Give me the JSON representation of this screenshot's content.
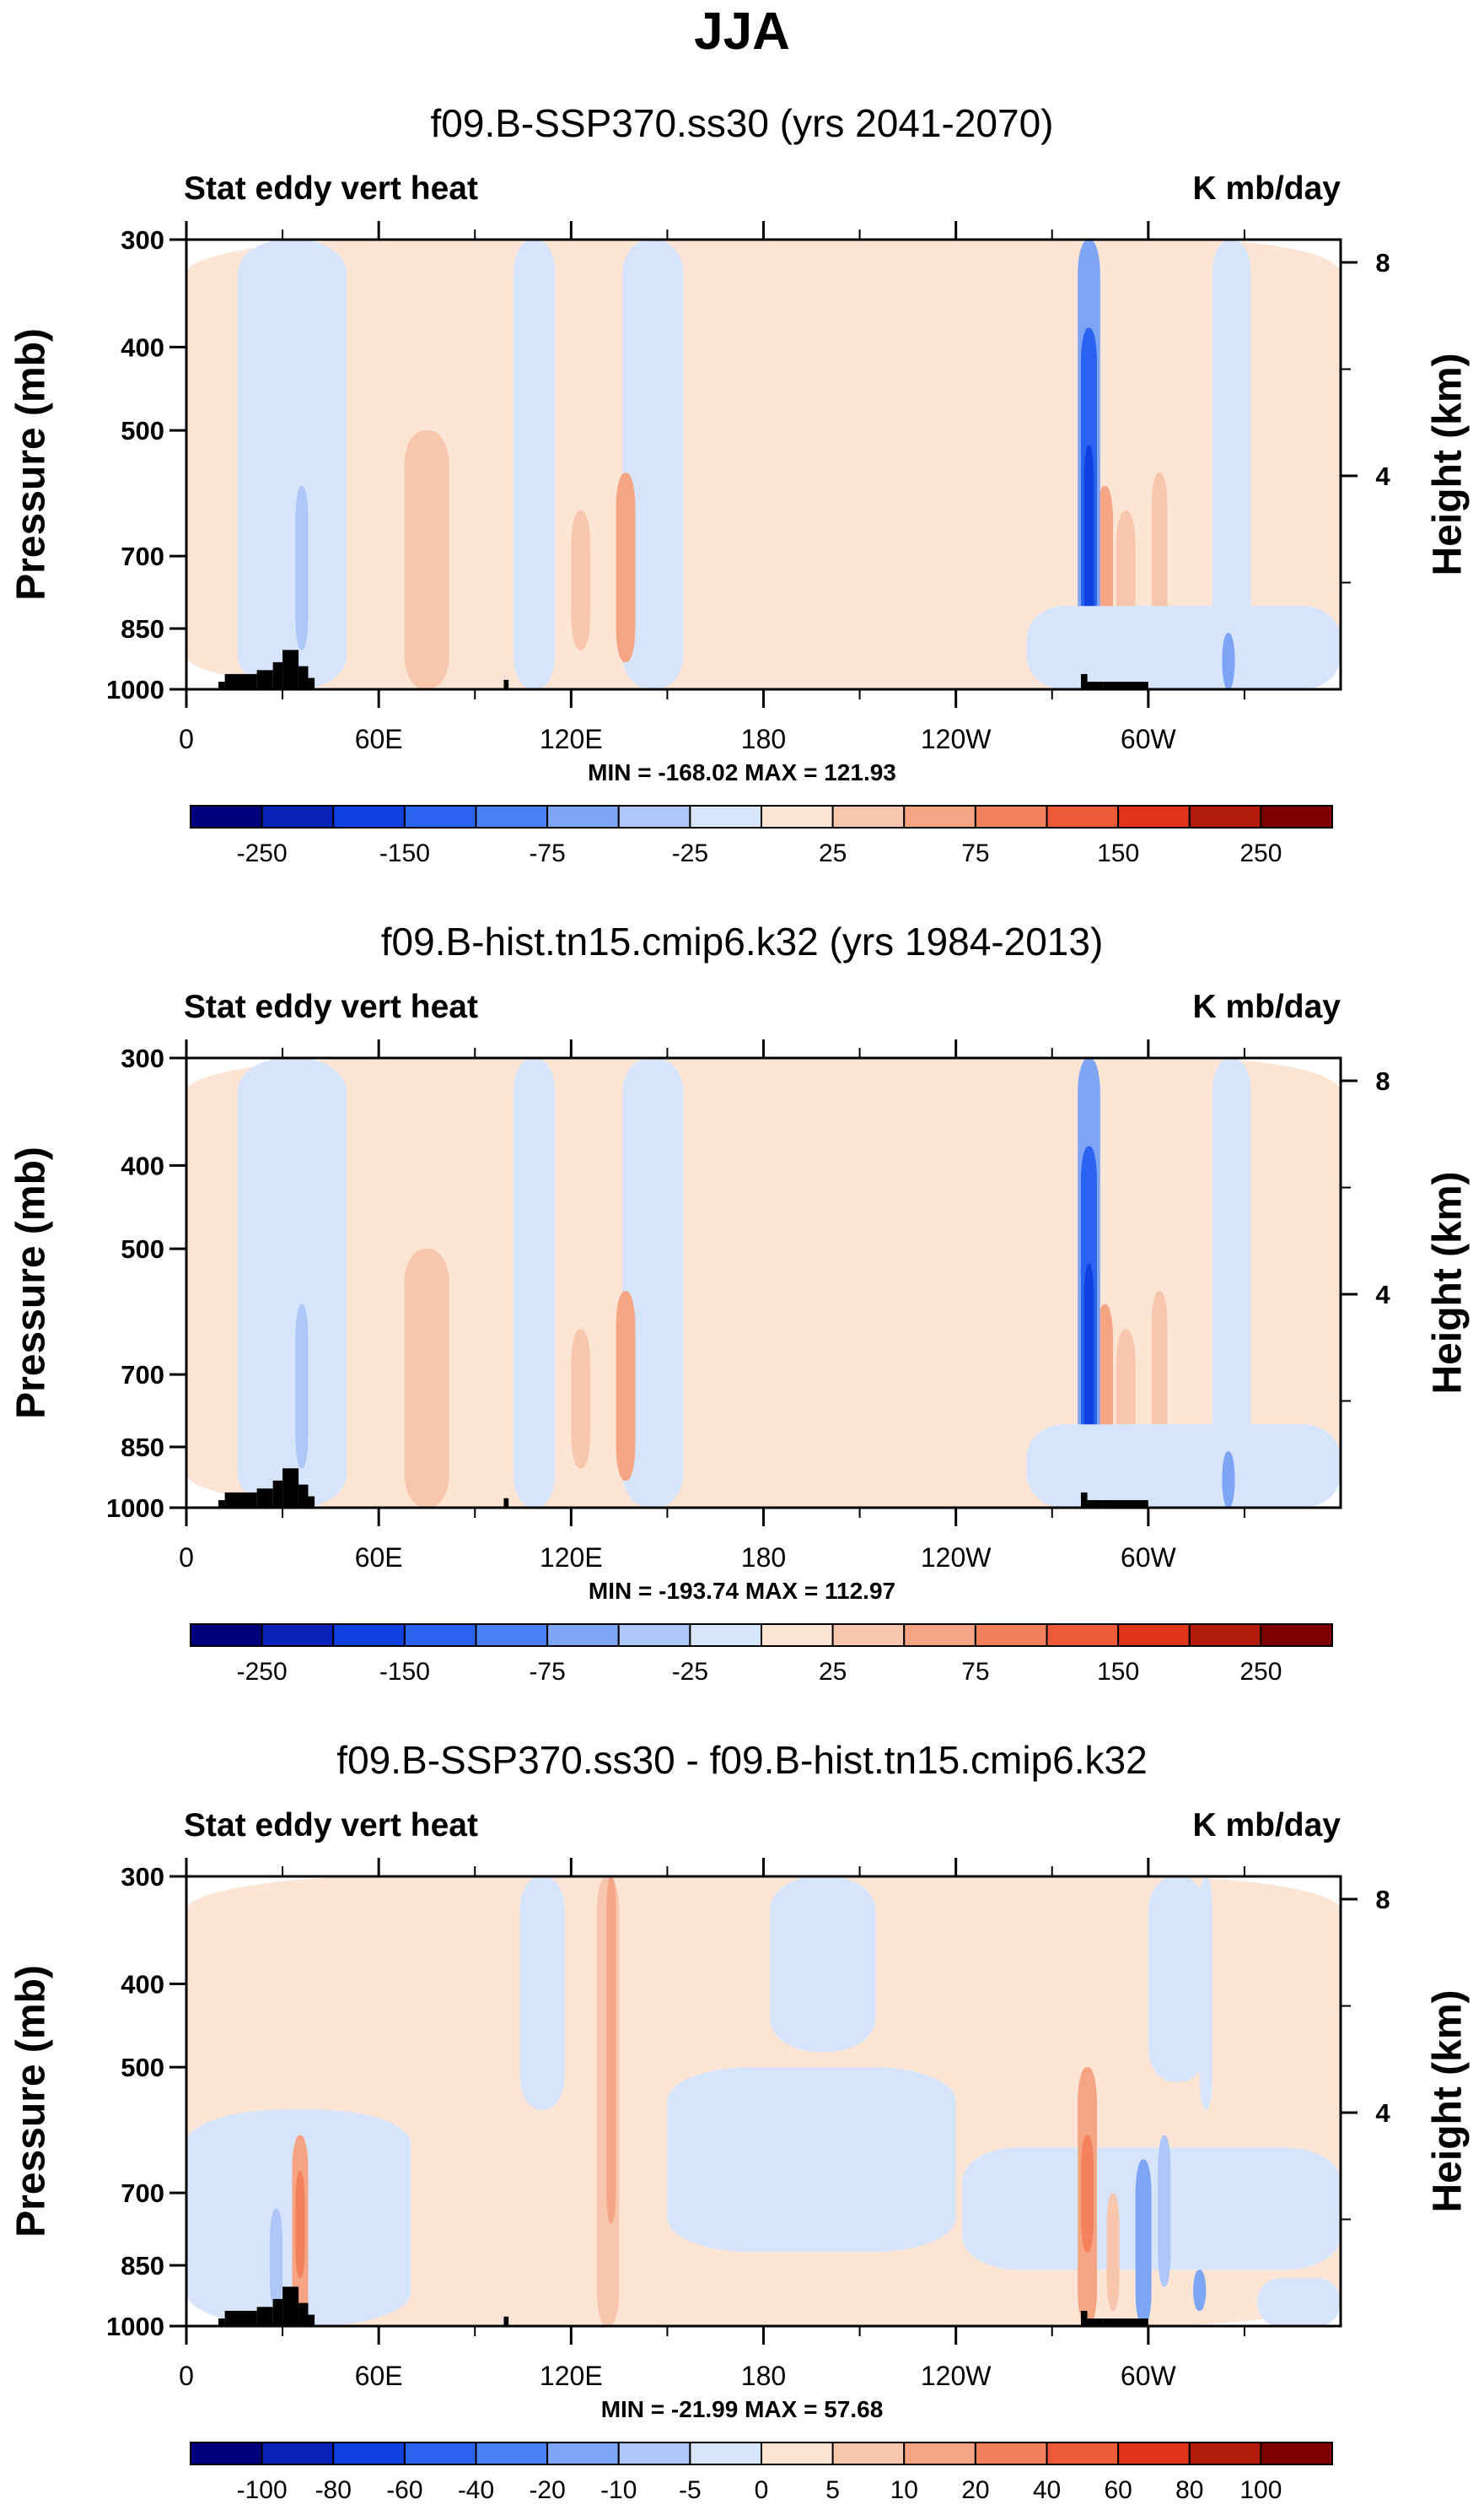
{
  "figure_title": "JJA",
  "colors": {
    "scale_abs": [
      "#00007f",
      "#0b22b8",
      "#1040e0",
      "#2a62f2",
      "#4b80f5",
      "#7ea4f6",
      "#aec7f8",
      "#d6e5fb",
      "#fde5d6",
      "#f8c6ad",
      "#f5a584",
      "#f2815c",
      "#ee5a37",
      "#e0341c",
      "#b31b0c",
      "#7f0000"
    ],
    "scale_diff": [
      "#00007f",
      "#0b22b8",
      "#1040e0",
      "#2a62f2",
      "#4b80f5",
      "#7ea4f6",
      "#aec7f8",
      "#d6e5fb",
      "#fde5d6",
      "#f8c6ad",
      "#f5a584",
      "#f2815c",
      "#ee5a37",
      "#e0341c",
      "#b31b0c",
      "#7f0000"
    ],
    "topography": "#000000"
  },
  "chart_data": [
    {
      "type": "heatmap",
      "subtitle": "f09.B-SSP370.ss30 (yrs 2041-2070)",
      "left_string": "Stat eddy vert heat",
      "right_string": "K mb/day",
      "ylabel": "Pressure (mb)",
      "y2label": "Height (km)",
      "x_ticks": [
        "0",
        "60E",
        "120E",
        "180",
        "120W",
        "60W"
      ],
      "x_tick_values": [
        0,
        60,
        120,
        180,
        240,
        300
      ],
      "xlim": [
        0,
        360
      ],
      "y_ticks": [
        "300",
        "400",
        "500",
        "700",
        "850",
        "1000"
      ],
      "y_tick_values": [
        300,
        400,
        500,
        700,
        850,
        1000
      ],
      "ylim": [
        1000,
        300
      ],
      "y2_ticks": [
        "8",
        "4"
      ],
      "y2_tick_values": [
        8,
        4
      ],
      "stats": "MIN = -168.02   MAX = 121.93",
      "min": -168.02,
      "max": 121.93,
      "colorbar_labels": [
        "-250",
        "-150",
        "-75",
        "-25",
        "25",
        "75",
        "150",
        "250"
      ],
      "colorbar_levels": [
        -300,
        -250,
        -200,
        -150,
        -100,
        -75,
        -50,
        -25,
        0,
        25,
        50,
        75,
        100,
        150,
        200,
        250,
        300
      ]
    },
    {
      "type": "heatmap",
      "subtitle": "f09.B-hist.tn15.cmip6.k32 (yrs 1984-2013)",
      "left_string": "Stat eddy vert heat",
      "right_string": "K mb/day",
      "ylabel": "Pressure (mb)",
      "y2label": "Height (km)",
      "x_ticks": [
        "0",
        "60E",
        "120E",
        "180",
        "120W",
        "60W"
      ],
      "x_tick_values": [
        0,
        60,
        120,
        180,
        240,
        300
      ],
      "xlim": [
        0,
        360
      ],
      "y_ticks": [
        "300",
        "400",
        "500",
        "700",
        "850",
        "1000"
      ],
      "y_tick_values": [
        300,
        400,
        500,
        700,
        850,
        1000
      ],
      "ylim": [
        1000,
        300
      ],
      "y2_ticks": [
        "8",
        "4"
      ],
      "y2_tick_values": [
        8,
        4
      ],
      "stats": "MIN = -193.74   MAX = 112.97",
      "min": -193.74,
      "max": 112.97,
      "colorbar_labels": [
        "-250",
        "-150",
        "-75",
        "-25",
        "25",
        "75",
        "150",
        "250"
      ],
      "colorbar_levels": [
        -300,
        -250,
        -200,
        -150,
        -100,
        -75,
        -50,
        -25,
        0,
        25,
        50,
        75,
        100,
        150,
        200,
        250,
        300
      ]
    },
    {
      "type": "heatmap",
      "subtitle": "f09.B-SSP370.ss30 - f09.B-hist.tn15.cmip6.k32",
      "left_string": "Stat eddy vert heat",
      "right_string": "K mb/day",
      "ylabel": "Pressure (mb)",
      "y2label": "Height (km)",
      "x_ticks": [
        "0",
        "60E",
        "120E",
        "180",
        "120W",
        "60W"
      ],
      "x_tick_values": [
        0,
        60,
        120,
        180,
        240,
        300
      ],
      "xlim": [
        0,
        360
      ],
      "y_ticks": [
        "300",
        "400",
        "500",
        "700",
        "850",
        "1000"
      ],
      "y_tick_values": [
        300,
        400,
        500,
        700,
        850,
        1000
      ],
      "ylim": [
        1000,
        300
      ],
      "y2_ticks": [
        "8",
        "4"
      ],
      "y2_tick_values": [
        8,
        4
      ],
      "stats": "MIN = -21.99   MAX = 57.68",
      "min": -21.99,
      "max": 57.68,
      "colorbar_labels": [
        "-100",
        "-80",
        "-60",
        "-40",
        "-20",
        "-10",
        "-5",
        "0",
        "5",
        "10",
        "20",
        "40",
        "60",
        "80",
        "100"
      ],
      "colorbar_levels": [
        -120,
        -100,
        -80,
        -60,
        -40,
        -20,
        -10,
        -5,
        0,
        5,
        10,
        20,
        40,
        60,
        80,
        100,
        120
      ]
    }
  ]
}
